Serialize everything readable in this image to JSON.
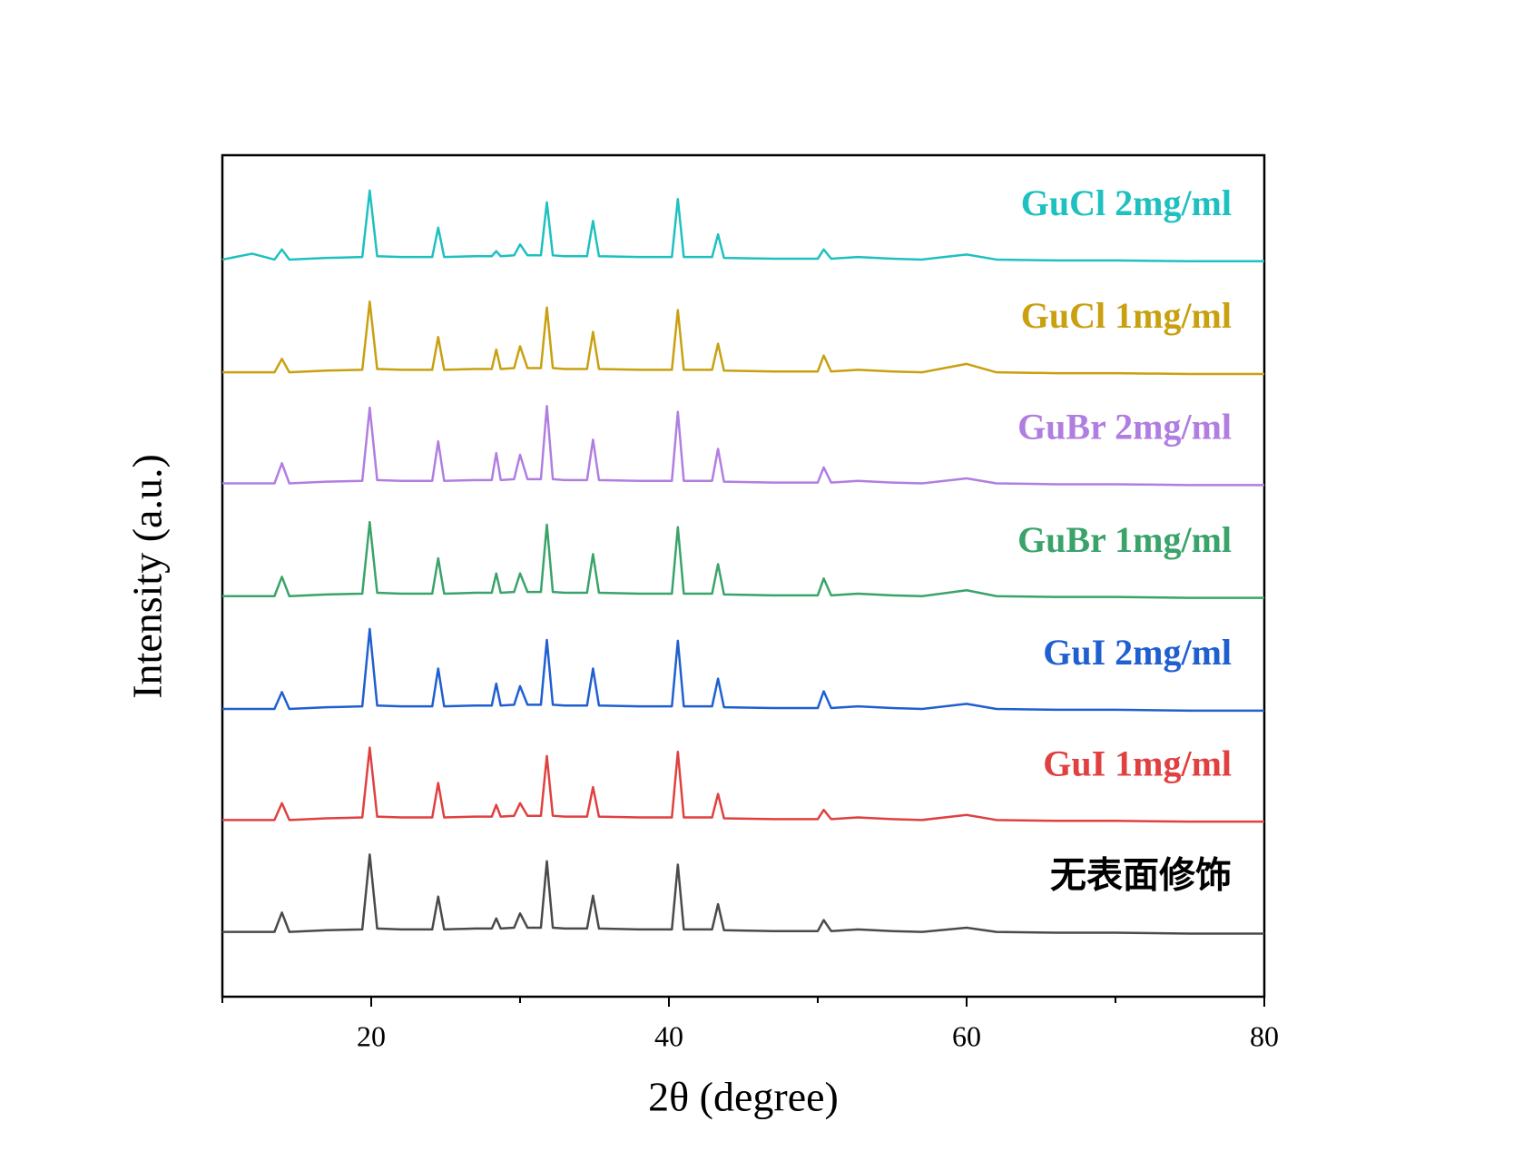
{
  "chart_data": {
    "type": "line",
    "xlabel": "2θ (degree)",
    "ylabel": "Intensity (a.u.)",
    "xlim": [
      10,
      80
    ],
    "ylim": [
      0,
      100
    ],
    "xticks": [
      20,
      40,
      60,
      80
    ],
    "xminorticks": [
      10,
      30,
      50,
      70
    ],
    "x": [
      10,
      12,
      13.5,
      14,
      14.5,
      17,
      19.4,
      19.9,
      20.4,
      22,
      24.1,
      24.5,
      24.9,
      27,
      28.1,
      28.4,
      28.7,
      29.6,
      30.0,
      30.5,
      31.4,
      31.8,
      32.2,
      33,
      34.5,
      34.9,
      35.3,
      38,
      40.2,
      40.6,
      41.0,
      42,
      42.9,
      43.3,
      43.7,
      47,
      50.0,
      50.4,
      50.9,
      52.7,
      55,
      57,
      60,
      62,
      66,
      70,
      75,
      80
    ],
    "series": [
      {
        "name": "无表面修饰",
        "color": "#4a4a4a",
        "values": [
          7.7,
          7.7,
          7.7,
          10.0,
          7.7,
          7.9,
          8.0,
          16.9,
          8.1,
          8.0,
          8.0,
          11.9,
          8.0,
          8.1,
          8.1,
          9.3,
          8.1,
          8.2,
          9.9,
          8.2,
          8.2,
          16.1,
          8.2,
          8.1,
          8.1,
          12.0,
          8.1,
          8.0,
          8.0,
          15.7,
          8.0,
          8.0,
          8.0,
          11.0,
          7.9,
          7.8,
          7.8,
          9.1,
          7.8,
          8.0,
          7.8,
          7.7,
          8.2,
          7.7,
          7.6,
          7.6,
          7.5,
          7.5
        ]
      },
      {
        "name": "GuI 1mg/ml",
        "color": "#e04040",
        "values": [
          21.0,
          21.0,
          21.0,
          23.0,
          21.0,
          21.2,
          21.3,
          29.6,
          21.4,
          21.3,
          21.3,
          25.4,
          21.3,
          21.4,
          21.4,
          22.8,
          21.4,
          21.5,
          23.0,
          21.5,
          21.5,
          28.6,
          21.5,
          21.4,
          21.4,
          24.9,
          21.4,
          21.3,
          21.3,
          29.1,
          21.3,
          21.3,
          21.3,
          24.1,
          21.2,
          21.1,
          21.1,
          22.2,
          21.1,
          21.3,
          21.1,
          21.0,
          21.6,
          21.0,
          20.9,
          20.9,
          20.8,
          20.8
        ]
      },
      {
        "name": "GuI 2mg/ml",
        "color": "#1f5fd0",
        "values": [
          34.2,
          34.2,
          34.2,
          36.2,
          34.2,
          34.4,
          34.5,
          43.7,
          34.6,
          34.5,
          34.5,
          39.0,
          34.5,
          34.6,
          34.6,
          37.2,
          34.6,
          34.7,
          36.9,
          34.7,
          34.7,
          42.4,
          34.7,
          34.6,
          34.6,
          39.0,
          34.6,
          34.5,
          34.5,
          42.3,
          34.5,
          34.5,
          34.5,
          37.8,
          34.4,
          34.3,
          34.3,
          36.3,
          34.3,
          34.5,
          34.3,
          34.2,
          34.8,
          34.2,
          34.1,
          34.1,
          34.0,
          34.0
        ]
      },
      {
        "name": "GuBr 1mg/ml",
        "color": "#3aa36a",
        "values": [
          47.6,
          47.6,
          47.6,
          49.9,
          47.6,
          47.8,
          47.9,
          56.4,
          48.0,
          47.9,
          47.9,
          52.1,
          47.9,
          48.0,
          48.0,
          50.3,
          48.0,
          48.1,
          50.3,
          48.1,
          48.1,
          56.1,
          48.1,
          48.0,
          48.0,
          52.6,
          48.0,
          47.9,
          47.9,
          55.8,
          47.9,
          47.9,
          47.9,
          51.4,
          47.8,
          47.7,
          47.7,
          49.7,
          47.7,
          47.9,
          47.7,
          47.6,
          48.3,
          47.6,
          47.5,
          47.5,
          47.4,
          47.4
        ]
      },
      {
        "name": "GuBr 2mg/ml",
        "color": "#b07ee0",
        "values": [
          61.0,
          61.0,
          61.0,
          63.4,
          61.0,
          61.2,
          61.3,
          70.0,
          61.4,
          61.3,
          61.3,
          66.0,
          61.3,
          61.4,
          61.4,
          64.6,
          61.4,
          61.5,
          64.4,
          61.5,
          61.5,
          70.2,
          61.5,
          61.4,
          61.4,
          66.2,
          61.4,
          61.3,
          61.3,
          69.5,
          61.3,
          61.3,
          61.3,
          65.1,
          61.2,
          61.1,
          61.1,
          62.9,
          61.1,
          61.3,
          61.1,
          61.0,
          61.6,
          61.0,
          60.9,
          60.9,
          60.8,
          60.8
        ]
      },
      {
        "name": "GuCl 1mg/ml",
        "color": "#c8a010",
        "values": [
          74.2,
          74.2,
          74.2,
          75.8,
          74.2,
          74.4,
          74.5,
          82.6,
          74.6,
          74.5,
          74.5,
          78.4,
          74.5,
          74.6,
          74.6,
          76.9,
          74.6,
          74.7,
          77.3,
          74.7,
          74.7,
          81.9,
          74.7,
          74.6,
          74.6,
          79.0,
          74.6,
          74.5,
          74.5,
          81.6,
          74.5,
          74.5,
          74.5,
          77.6,
          74.4,
          74.3,
          74.3,
          76.2,
          74.3,
          74.5,
          74.3,
          74.2,
          75.2,
          74.2,
          74.1,
          74.1,
          74.0,
          74.0
        ]
      },
      {
        "name": "GuCl 2mg/ml",
        "color": "#1fc0c0",
        "values": [
          87.6,
          88.3,
          87.6,
          88.8,
          87.6,
          87.8,
          87.9,
          95.8,
          88.0,
          87.9,
          87.9,
          91.4,
          87.9,
          88.0,
          88.0,
          88.6,
          88.0,
          88.1,
          89.4,
          88.1,
          88.1,
          94.4,
          88.1,
          88.0,
          88.0,
          92.2,
          88.0,
          87.9,
          87.9,
          94.8,
          87.9,
          87.9,
          87.9,
          90.6,
          87.8,
          87.7,
          87.7,
          88.8,
          87.7,
          87.9,
          87.7,
          87.6,
          88.2,
          87.6,
          87.5,
          87.5,
          87.4,
          87.4
        ]
      }
    ]
  }
}
